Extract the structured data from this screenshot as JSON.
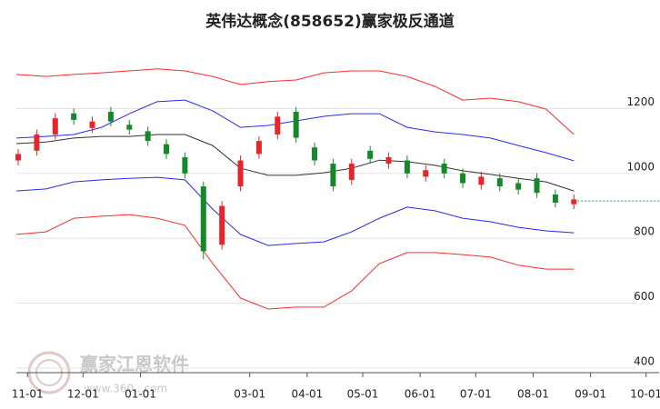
{
  "chart_data": {
    "type": "candlestick",
    "title": "英伟达概念(858652)赢家极反通道",
    "watermark": {
      "name": "赢家江恩软件",
      "url": "www.360...com"
    },
    "xlim": [
      -6,
      341
    ],
    "xticks": [
      {
        "value": 0,
        "label": "11-01"
      },
      {
        "value": 30,
        "label": "12-01"
      },
      {
        "value": 61,
        "label": "01-01"
      },
      {
        "value": 120,
        "label": "03-01"
      },
      {
        "value": 151,
        "label": "04-01"
      },
      {
        "value": 181,
        "label": "05-01"
      },
      {
        "value": 212,
        "label": "06-01"
      },
      {
        "value": 242,
        "label": "07-01"
      },
      {
        "value": 273,
        "label": "08-01"
      },
      {
        "value": 304,
        "label": "09-01"
      },
      {
        "value": 334,
        "label": "10-01"
      }
    ],
    "ylim": [
      400,
      1400
    ],
    "yticks": [
      400,
      600,
      800,
      1000,
      1200
    ],
    "grid": true,
    "bands": {
      "x": [
        -6,
        10,
        25,
        40,
        55,
        70,
        85,
        100,
        115,
        130,
        145,
        160,
        175,
        190,
        205,
        220,
        235,
        250,
        265,
        280,
        295
      ],
      "lines": [
        {
          "color": "#ff2a2a",
          "values": [
            1305,
            1299,
            1305,
            1310,
            1316,
            1322,
            1316,
            1299,
            1274,
            1283,
            1288,
            1310,
            1316,
            1316,
            1299,
            1268,
            1226,
            1232,
            1221,
            1198,
            1120
          ]
        },
        {
          "color": "#2a2aee",
          "values": [
            1109,
            1114,
            1120,
            1142,
            1184,
            1221,
            1226,
            1193,
            1142,
            1148,
            1162,
            1176,
            1184,
            1184,
            1142,
            1128,
            1120,
            1109,
            1086,
            1064,
            1039
          ]
        },
        {
          "color": "#333333",
          "values": [
            1092,
            1097,
            1109,
            1114,
            1114,
            1120,
            1120,
            1086,
            1016,
            994,
            994,
            1002,
            1016,
            1041,
            1036,
            1025,
            1008,
            997,
            985,
            974,
            946
          ]
        },
        {
          "color": "#2a2aee",
          "values": [
            946,
            952,
            974,
            980,
            985,
            988,
            980,
            890,
            812,
            778,
            784,
            789,
            820,
            862,
            896,
            885,
            862,
            851,
            834,
            823,
            817
          ]
        },
        {
          "color": "#ff2a2a",
          "values": [
            812,
            820,
            862,
            868,
            873,
            862,
            840,
            722,
            616,
            582,
            588,
            588,
            638,
            722,
            756,
            756,
            750,
            742,
            717,
            705,
            705
          ]
        }
      ]
    },
    "candles": {
      "up_color": "#e8262a",
      "down_color": "#15882a",
      "x": [
        -5,
        5,
        15,
        25,
        35,
        45,
        55,
        65,
        75,
        85,
        95,
        105,
        115,
        125,
        135,
        145,
        155,
        165,
        175,
        185,
        195,
        205,
        215,
        225,
        235,
        245,
        255,
        265,
        275,
        285,
        295
      ],
      "open": [
        1040,
        1070,
        1120,
        1185,
        1140,
        1190,
        1150,
        1130,
        1090,
        1050,
        960,
        780,
        960,
        1060,
        1120,
        1190,
        1080,
        1030,
        980,
        1070,
        1030,
        1040,
        990,
        1030,
        1000,
        965,
        985,
        970,
        985,
        935,
        905
      ],
      "high": [
        1075,
        1135,
        1185,
        1200,
        1175,
        1205,
        1165,
        1145,
        1105,
        1065,
        975,
        915,
        1055,
        1115,
        1190,
        1205,
        1095,
        1045,
        1045,
        1085,
        1065,
        1055,
        1025,
        1045,
        1015,
        1005,
        1000,
        985,
        1000,
        950,
        935
      ],
      "low": [
        1025,
        1055,
        1105,
        1150,
        1125,
        1145,
        1120,
        1085,
        1045,
        985,
        735,
        765,
        945,
        1045,
        1105,
        1095,
        1025,
        945,
        965,
        1030,
        1015,
        985,
        975,
        985,
        955,
        950,
        945,
        935,
        925,
        895,
        890
      ],
      "close": [
        1060,
        1120,
        1170,
        1165,
        1160,
        1160,
        1135,
        1100,
        1060,
        1000,
        760,
        900,
        1040,
        1100,
        1175,
        1110,
        1040,
        960,
        1030,
        1045,
        1050,
        1000,
        1010,
        1000,
        970,
        990,
        960,
        950,
        940,
        910,
        920
      ]
    },
    "last_price": {
      "value": 915,
      "color": "#2a9a3a"
    }
  }
}
